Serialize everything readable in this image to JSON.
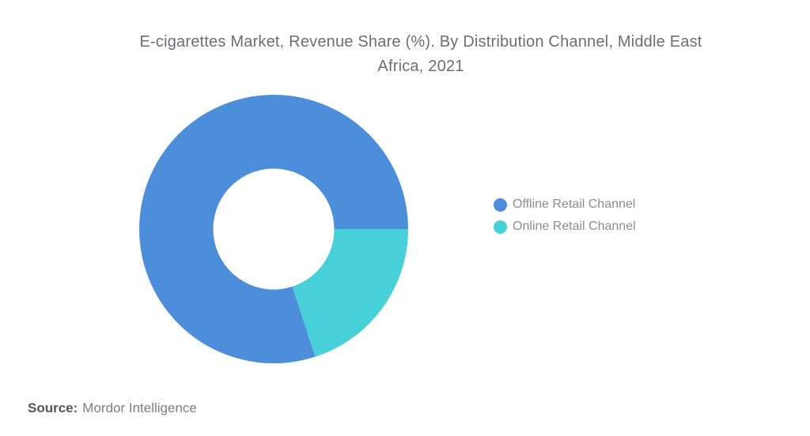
{
  "title": {
    "lines": [
      "E-cigarettes Market, Revenue Share (%). By Distribution Channel, Middle East",
      "Africa, 2021"
    ]
  },
  "chart_data": {
    "type": "pie",
    "donut": true,
    "title": "E-cigarettes Market, Revenue Share (%). By Distribution Channel, Middle East Africa, 2021",
    "units": "%",
    "start_angle_deg": 72,
    "direction": "clockwise",
    "inner_radius_ratio": 0.45,
    "legend_position": "right",
    "data_labels_shown": false,
    "series": [
      {
        "name": "Offline Retail Channel",
        "value": 80,
        "color": "#4d8edb"
      },
      {
        "name": "Online Retail Channel",
        "value": 20,
        "color": "#48d0d8"
      }
    ]
  },
  "source": {
    "label": "Source:",
    "text": "Mordor Intelligence"
  }
}
